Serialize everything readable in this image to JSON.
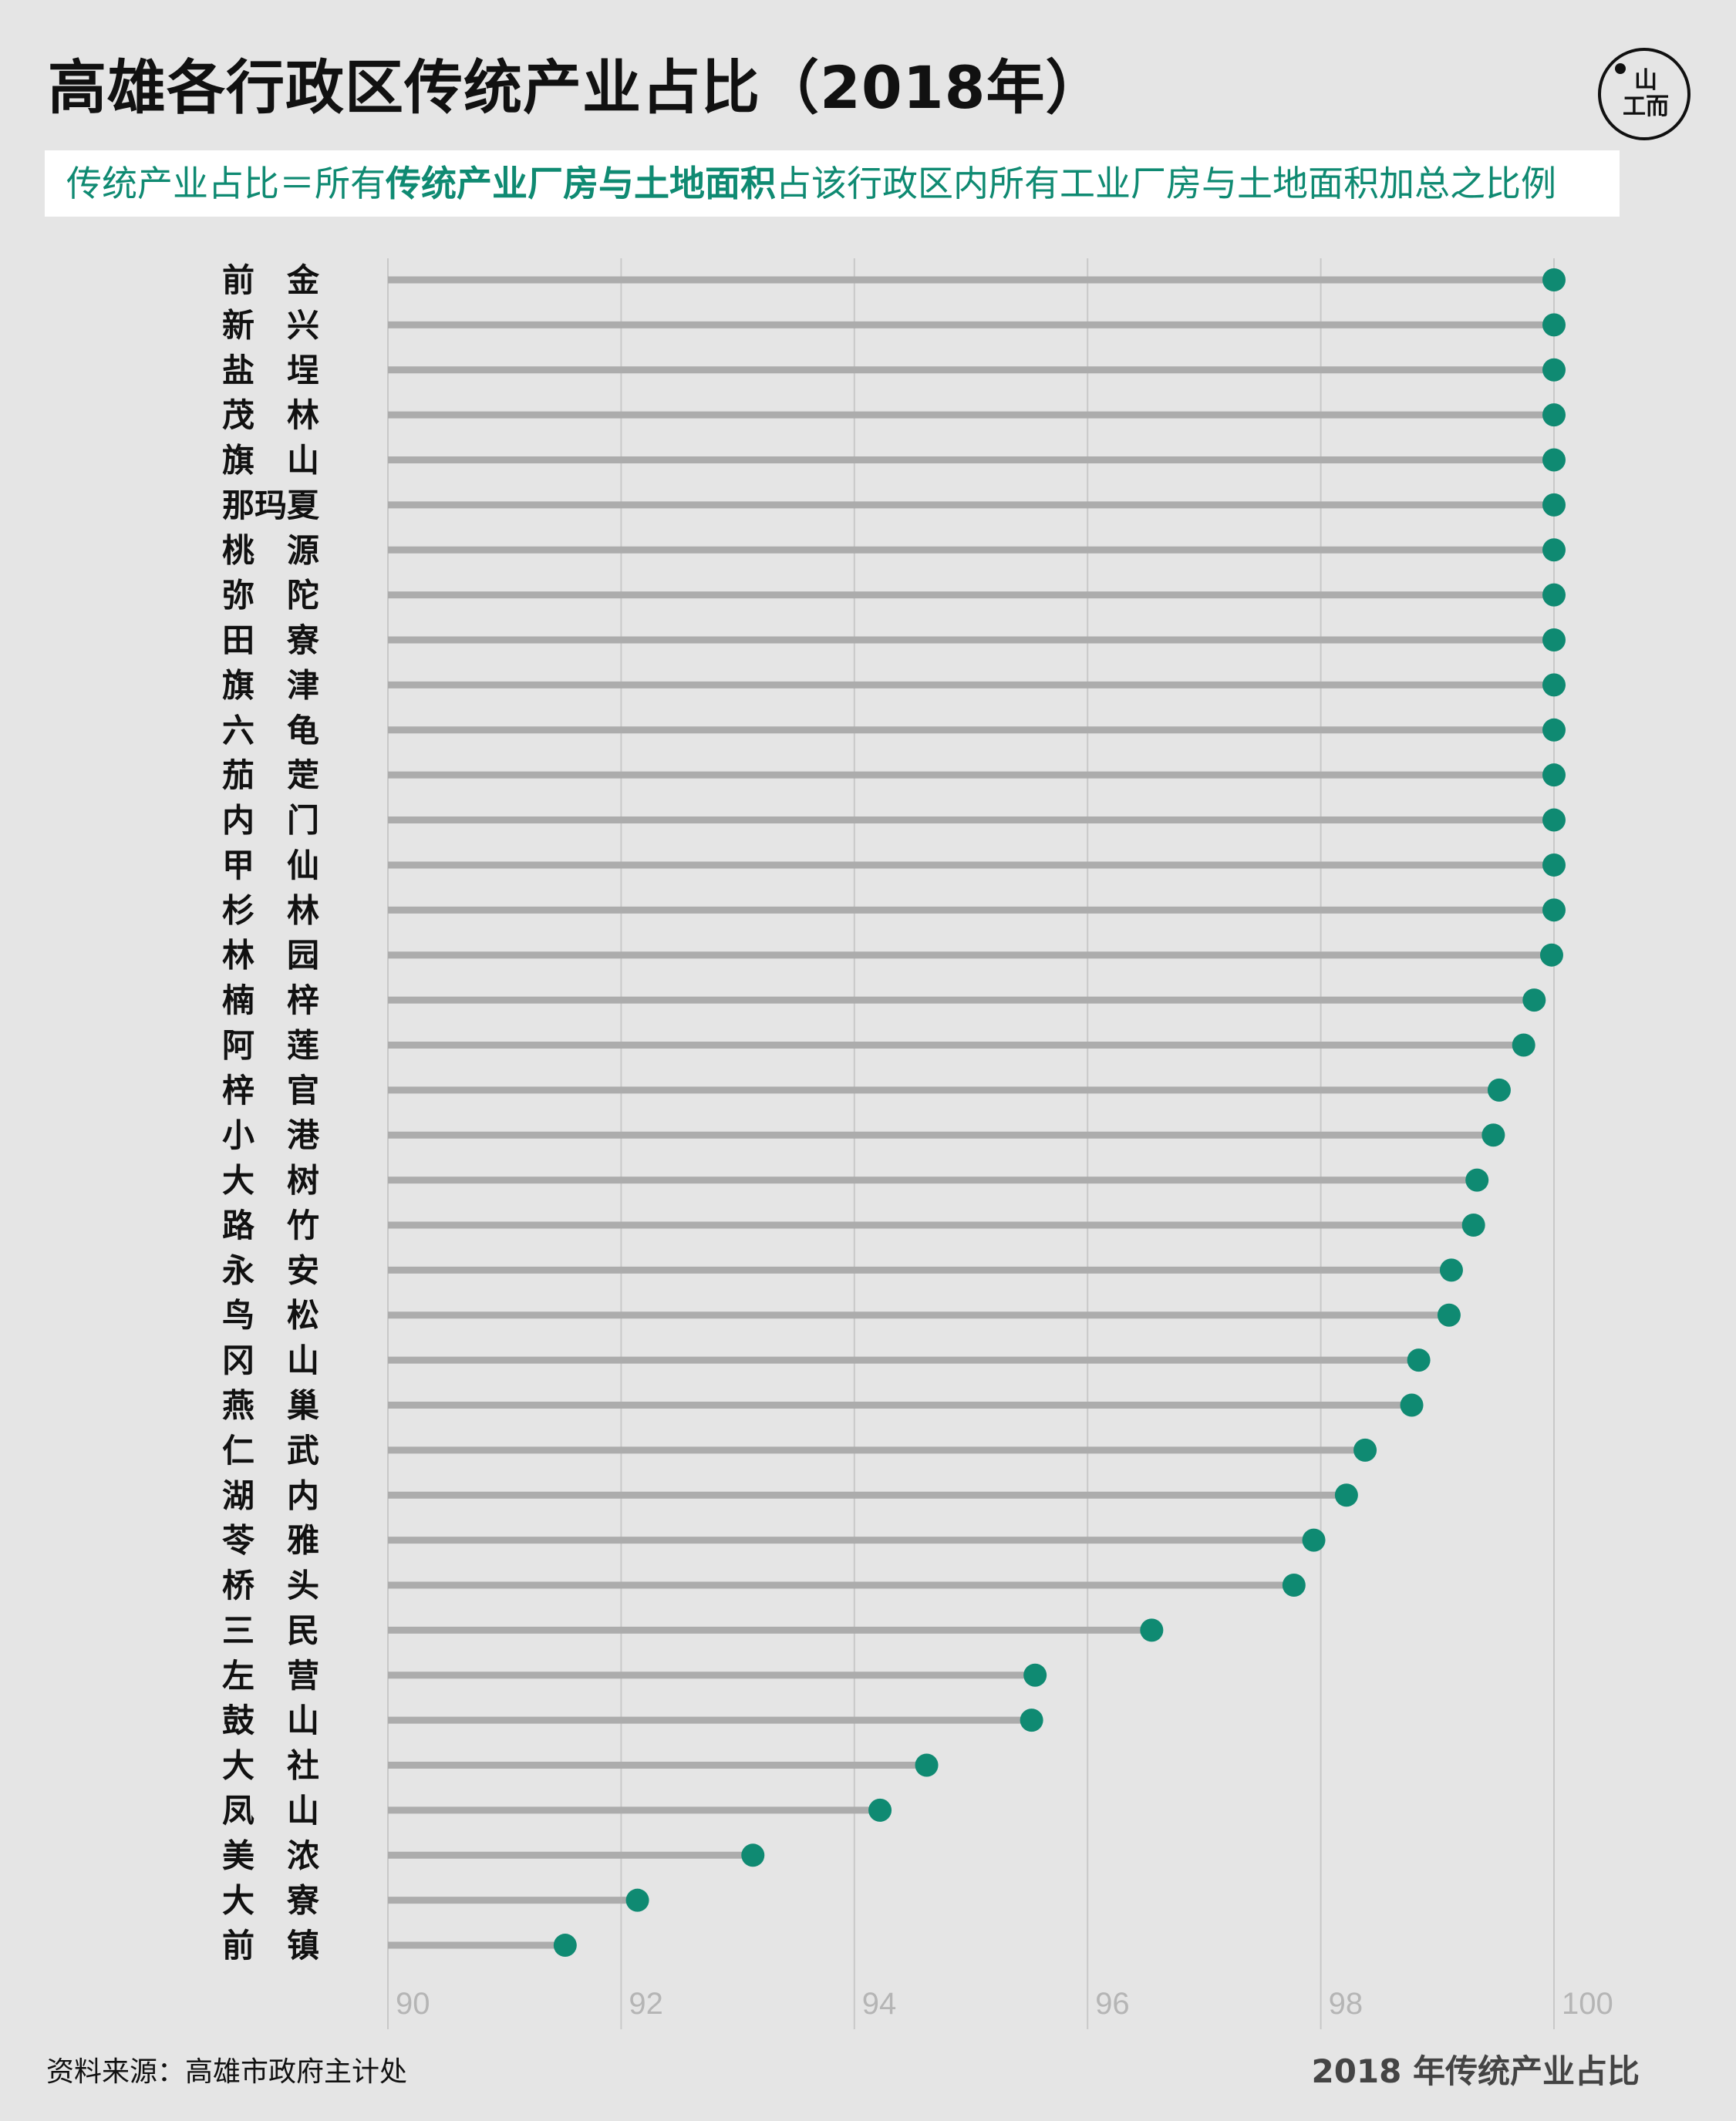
{
  "title": "高雄各行政区传统产业占比（2018年）",
  "subtitle": {
    "prefix": "传统产业占比＝所有",
    "highlight": "传统产业厂房与土地面积",
    "suffix": "占该行政区内所有工业厂房与土地面积加总之比例"
  },
  "logo": {
    "line1": "山",
    "line2": "工而"
  },
  "source": "资料来源：高雄市政府主计处",
  "footer_label": "2018 年传统产业占比",
  "colors": {
    "dot": "#0f8a72",
    "stem": "#acacac",
    "grid": "#c8c8c8",
    "axis_text": "#b5b5b5",
    "label": "#111111"
  },
  "chart_data": {
    "type": "lollipop",
    "title": "高雄各行政区传统产业占比（2018年）",
    "xlabel": "2018 年传统产业占比",
    "xlim": [
      90,
      100
    ],
    "xticks": [
      90,
      92,
      94,
      96,
      98,
      100
    ],
    "orientation": "horizontal",
    "grid": true,
    "categories": [
      "前　金",
      "新　兴",
      "盐　埕",
      "茂　林",
      "旗　山",
      "那玛夏",
      "桃　源",
      "弥　陀",
      "田　寮",
      "旗　津",
      "六　龟",
      "茄　萣",
      "内　门",
      "甲　仙",
      "杉　林",
      "林　园",
      "楠　梓",
      "阿　莲",
      "梓　官",
      "小　港",
      "大　树",
      "路　竹",
      "永　安",
      "鸟　松",
      "冈　山",
      "燕　巢",
      "仁　武",
      "湖　内",
      "苓　雅",
      "桥　头",
      "三　民",
      "左　营",
      "鼓　山",
      "大　社",
      "凤　山",
      "美　浓",
      "大　寮",
      "前　镇"
    ],
    "values": [
      100,
      100,
      100,
      100,
      100,
      100,
      100,
      100,
      100,
      100,
      100,
      100,
      100,
      100,
      100,
      99.98,
      99.83,
      99.74,
      99.53,
      99.48,
      99.34,
      99.31,
      99.12,
      99.1,
      98.84,
      98.78,
      98.38,
      98.22,
      97.94,
      97.77,
      96.55,
      95.55,
      95.52,
      94.62,
      94.22,
      93.13,
      92.14,
      91.52
    ]
  }
}
